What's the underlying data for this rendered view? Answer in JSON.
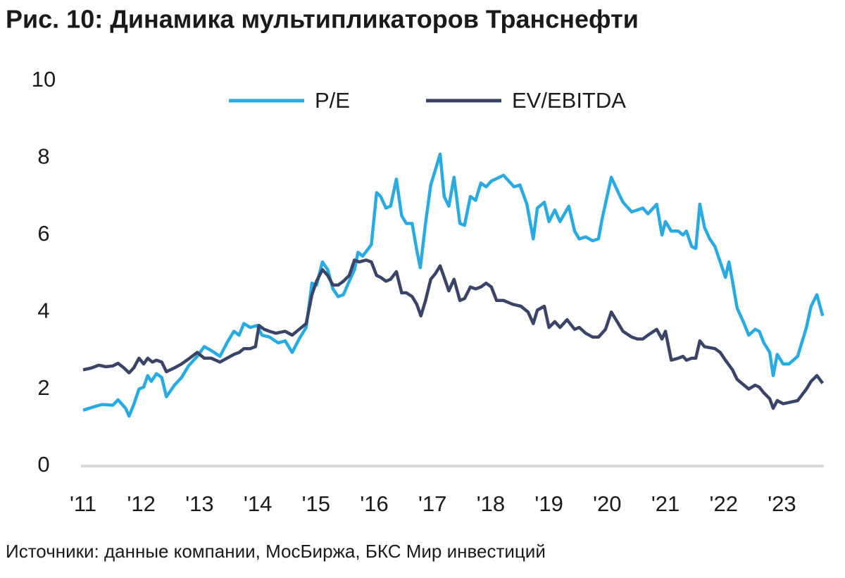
{
  "chart_data": {
    "type": "line",
    "title": "Рис. 10: Динамика мультипликаторов Транснефти",
    "source": "Источники: данные компании, МосБиржа, БКС Мир инвестиций",
    "xlim": [
      2011,
      2023.72
    ],
    "xticks": [
      {
        "value": 2011,
        "label": "'11"
      },
      {
        "value": 2012,
        "label": "'12"
      },
      {
        "value": 2013,
        "label": "'13"
      },
      {
        "value": 2014,
        "label": "'14"
      },
      {
        "value": 2015,
        "label": "'15"
      },
      {
        "value": 2016,
        "label": "'16"
      },
      {
        "value": 2017,
        "label": "'17"
      },
      {
        "value": 2018,
        "label": "'18"
      },
      {
        "value": 2019,
        "label": "'19"
      },
      {
        "value": 2020,
        "label": "'20"
      },
      {
        "value": 2021,
        "label": "'21"
      },
      {
        "value": 2022,
        "label": "'22"
      },
      {
        "value": 2023,
        "label": "'23"
      }
    ],
    "ylim": [
      0,
      10
    ],
    "yticks": [
      0,
      2,
      4,
      6,
      8,
      10
    ],
    "grid": false,
    "legend": "top",
    "series": [
      {
        "name": "P/E",
        "color": "#29abe2",
        "x": [
          2011.0,
          2011.21,
          2011.33,
          2011.51,
          2011.6,
          2011.73,
          2011.79,
          2011.87,
          2011.96,
          2012.04,
          2012.11,
          2012.17,
          2012.26,
          2012.35,
          2012.43,
          2012.57,
          2012.69,
          2012.81,
          2012.96,
          2013.08,
          2013.2,
          2013.35,
          2013.47,
          2013.59,
          2013.68,
          2013.76,
          2013.87,
          2013.99,
          2014.07,
          2014.2,
          2014.35,
          2014.47,
          2014.59,
          2014.71,
          2014.83,
          2014.93,
          2015.01,
          2015.11,
          2015.2,
          2015.29,
          2015.38,
          2015.47,
          2015.57,
          2015.66,
          2015.72,
          2015.8,
          2015.95,
          2016.04,
          2016.11,
          2016.2,
          2016.28,
          2016.38,
          2016.47,
          2016.55,
          2016.65,
          2016.73,
          2016.79,
          2016.88,
          2016.97,
          2017.05,
          2017.13,
          2017.2,
          2017.28,
          2017.37,
          2017.47,
          2017.55,
          2017.65,
          2017.74,
          2017.83,
          2017.92,
          2018.01,
          2018.22,
          2018.4,
          2018.5,
          2018.62,
          2018.73,
          2018.8,
          2018.92,
          2019.0,
          2019.1,
          2019.19,
          2019.34,
          2019.44,
          2019.52,
          2019.63,
          2019.75,
          2019.85,
          2019.91,
          2020.07,
          2020.19,
          2020.27,
          2020.42,
          2020.52,
          2020.61,
          2020.7,
          2020.85,
          2020.94,
          2021.0,
          2021.1,
          2021.22,
          2021.3,
          2021.36,
          2021.45,
          2021.52,
          2021.59,
          2021.67,
          2021.76,
          2021.85,
          2021.94,
          2022.03,
          2022.09,
          2022.15,
          2022.23,
          2022.35,
          2022.43,
          2022.54,
          2022.61,
          2022.69,
          2022.79,
          2022.85,
          2022.92,
          2023.02,
          2023.12,
          2023.27,
          2023.42,
          2023.5,
          2023.6,
          2023.7
        ],
        "values": [
          1.45,
          1.55,
          1.6,
          1.58,
          1.72,
          1.5,
          1.3,
          1.6,
          2.0,
          2.05,
          2.35,
          2.2,
          2.4,
          2.3,
          1.8,
          2.1,
          2.3,
          2.6,
          2.85,
          3.1,
          3.0,
          2.85,
          3.2,
          3.5,
          3.4,
          3.7,
          3.6,
          3.65,
          3.4,
          3.35,
          3.2,
          3.25,
          2.95,
          3.3,
          3.6,
          4.75,
          4.7,
          5.3,
          5.1,
          4.6,
          4.4,
          4.45,
          4.8,
          5.1,
          5.55,
          5.45,
          5.75,
          7.1,
          7.0,
          6.7,
          6.75,
          7.45,
          6.5,
          6.3,
          6.3,
          5.6,
          5.15,
          6.3,
          7.3,
          7.7,
          8.1,
          7.0,
          6.75,
          7.5,
          6.3,
          6.25,
          7.0,
          6.9,
          7.35,
          7.25,
          7.4,
          7.55,
          7.25,
          7.3,
          6.8,
          5.9,
          6.7,
          6.85,
          6.35,
          6.65,
          6.35,
          6.75,
          6.1,
          5.9,
          5.95,
          5.85,
          5.9,
          6.4,
          7.5,
          7.1,
          6.85,
          6.6,
          6.65,
          6.7,
          6.55,
          6.8,
          6.0,
          6.35,
          6.1,
          6.1,
          6.0,
          6.1,
          5.7,
          5.65,
          6.8,
          6.2,
          5.9,
          5.7,
          5.3,
          4.9,
          5.3,
          4.8,
          4.1,
          3.7,
          3.4,
          3.55,
          3.5,
          3.2,
          2.95,
          2.35,
          2.9,
          2.65,
          2.65,
          2.85,
          3.6,
          4.15,
          4.45,
          3.9
        ]
      },
      {
        "name": "EV/EBITDA",
        "color": "#3b4466",
        "x": [
          2011.0,
          2011.15,
          2011.27,
          2011.39,
          2011.51,
          2011.6,
          2011.7,
          2011.79,
          2011.87,
          2011.96,
          2012.04,
          2012.11,
          2012.19,
          2012.26,
          2012.35,
          2012.43,
          2012.57,
          2012.69,
          2012.81,
          2012.96,
          2013.08,
          2013.2,
          2013.35,
          2013.47,
          2013.59,
          2013.68,
          2013.76,
          2013.87,
          2013.96,
          2014.02,
          2014.11,
          2014.2,
          2014.31,
          2014.47,
          2014.59,
          2014.71,
          2014.83,
          2014.93,
          2015.01,
          2015.11,
          2015.2,
          2015.29,
          2015.38,
          2015.47,
          2015.57,
          2015.66,
          2015.74,
          2015.86,
          2015.95,
          2016.04,
          2016.11,
          2016.2,
          2016.28,
          2016.38,
          2016.47,
          2016.55,
          2016.65,
          2016.73,
          2016.8,
          2016.88,
          2016.97,
          2017.05,
          2017.13,
          2017.2,
          2017.28,
          2017.37,
          2017.47,
          2017.55,
          2017.65,
          2017.74,
          2017.83,
          2017.92,
          2018.01,
          2018.1,
          2018.22,
          2018.38,
          2018.52,
          2018.64,
          2018.73,
          2018.8,
          2018.92,
          2019.0,
          2019.1,
          2019.19,
          2019.31,
          2019.44,
          2019.52,
          2019.63,
          2019.75,
          2019.85,
          2019.97,
          2020.07,
          2020.19,
          2020.27,
          2020.42,
          2020.52,
          2020.61,
          2020.7,
          2020.85,
          2020.94,
          2021.0,
          2021.1,
          2021.22,
          2021.3,
          2021.36,
          2021.45,
          2021.52,
          2021.59,
          2021.67,
          2021.85,
          2021.94,
          2022.03,
          2022.15,
          2022.23,
          2022.35,
          2022.43,
          2022.54,
          2022.61,
          2022.69,
          2022.79,
          2022.85,
          2022.92,
          2023.02,
          2023.12,
          2023.27,
          2023.42,
          2023.5,
          2023.6,
          2023.7
        ],
        "values": [
          2.5,
          2.55,
          2.62,
          2.58,
          2.6,
          2.67,
          2.55,
          2.42,
          2.55,
          2.8,
          2.65,
          2.8,
          2.7,
          2.75,
          2.7,
          2.45,
          2.55,
          2.65,
          2.78,
          2.95,
          2.8,
          2.8,
          2.7,
          2.8,
          2.9,
          2.95,
          3.05,
          3.05,
          3.1,
          3.65,
          3.55,
          3.5,
          3.45,
          3.5,
          3.4,
          3.55,
          3.7,
          4.45,
          4.8,
          5.1,
          4.95,
          4.7,
          4.7,
          4.8,
          4.95,
          5.35,
          5.3,
          5.35,
          5.3,
          4.95,
          4.9,
          4.8,
          4.85,
          5.05,
          4.5,
          4.5,
          4.4,
          4.2,
          3.9,
          4.3,
          4.85,
          5.0,
          5.2,
          4.9,
          4.55,
          4.85,
          4.3,
          4.35,
          4.65,
          4.6,
          4.65,
          4.75,
          4.65,
          4.3,
          4.3,
          4.2,
          4.15,
          4.0,
          3.7,
          4.05,
          4.15,
          3.6,
          3.75,
          3.6,
          3.8,
          3.55,
          3.6,
          3.45,
          3.35,
          3.35,
          3.55,
          4.0,
          3.7,
          3.5,
          3.35,
          3.3,
          3.3,
          3.4,
          3.55,
          3.3,
          3.5,
          2.75,
          2.8,
          2.85,
          2.75,
          2.8,
          2.8,
          3.25,
          3.1,
          3.05,
          2.95,
          2.75,
          2.5,
          2.25,
          2.1,
          2.0,
          2.1,
          2.05,
          1.9,
          1.75,
          1.5,
          1.7,
          1.62,
          1.65,
          1.7,
          2.0,
          2.2,
          2.35,
          2.15
        ]
      }
    ]
  }
}
